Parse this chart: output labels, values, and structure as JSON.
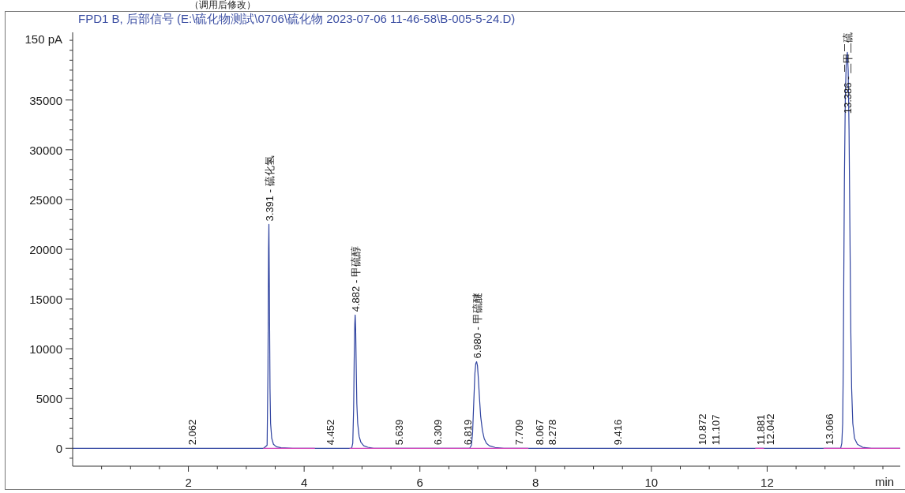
{
  "chart_data": {
    "type": "line",
    "title": "FPD1 B, 后部信号 (E:\\硫化物测試\\0706\\硫化物 2023-07-06 11-46-58\\B-005-5-24.D)",
    "subtitle": "（调用后修改）",
    "xlabel": "min",
    "ylabel": "150 pA",
    "x": [
      0,
      3.3,
      3.36,
      3.375,
      3.385,
      3.391,
      3.4,
      3.41,
      3.42,
      3.44,
      3.47,
      3.52,
      3.6,
      3.8,
      4.82,
      4.84,
      4.855,
      4.865,
      4.875,
      4.882,
      4.89,
      4.9,
      4.91,
      4.925,
      4.95,
      4.98,
      5.03,
      5.1,
      5.2,
      6.86,
      6.89,
      6.91,
      6.93,
      6.95,
      6.965,
      6.98,
      6.995,
      7.01,
      7.03,
      7.05,
      7.08,
      7.11,
      7.15,
      7.2,
      7.3,
      7.45,
      13.27,
      13.29,
      13.305,
      13.315,
      13.325,
      13.335,
      13.35,
      13.365,
      13.386,
      13.4,
      13.415,
      13.43,
      13.445,
      13.46,
      13.48,
      13.51,
      13.56,
      13.65,
      13.8,
      14.3
    ],
    "series": [
      {
        "color": "#2f43a0",
        "values": [
          0,
          0,
          300,
          8000,
          20000,
          22500,
          15000,
          6000,
          2500,
          1000,
          400,
          150,
          50,
          0,
          0,
          500,
          4000,
          9000,
          12500,
          13400,
          12000,
          8000,
          4500,
          2500,
          1200,
          600,
          250,
          100,
          0,
          0,
          300,
          1500,
          4500,
          7500,
          8500,
          8700,
          8300,
          7000,
          5000,
          3200,
          1800,
          1000,
          500,
          250,
          80,
          0,
          0,
          500,
          2500,
          8000,
          18000,
          27000,
          35000,
          38500,
          39800,
          38000,
          32000,
          22000,
          12000,
          6000,
          2500,
          1000,
          400,
          100,
          0,
          0
        ]
      },
      {
        "color": "#d040b8",
        "x": [
          3.3,
          4.18,
          4.5,
          4.79,
          7.87,
          9,
          11.8,
          11.94,
          12.5,
          12.98,
          14.3
        ],
        "values": [
          0,
          0,
          null,
          0,
          0,
          null,
          0,
          0,
          null,
          0,
          0
        ]
      }
    ],
    "xlim": [
      0,
      14.3
    ],
    "xticks": [
      {
        "value": 0.5,
        "label": null
      },
      {
        "value": 1,
        "label": null
      },
      {
        "value": 1.5,
        "label": null
      },
      2,
      {
        "value": 2.5,
        "label": null
      },
      {
        "value": 3,
        "label": null
      },
      {
        "value": 3.5,
        "label": null
      },
      4,
      {
        "value": 4.5,
        "label": null
      },
      {
        "value": 5,
        "label": null
      },
      {
        "value": 5.5,
        "label": null
      },
      6,
      {
        "value": 6.5,
        "label": null
      },
      {
        "value": 7,
        "label": null
      },
      {
        "value": 7.5,
        "label": null
      },
      8,
      {
        "value": 8.5,
        "label": null
      },
      {
        "value": 9,
        "label": null
      },
      {
        "value": 9.5,
        "label": null
      },
      10,
      {
        "value": 10.5,
        "label": null
      },
      {
        "value": 11,
        "label": null
      },
      {
        "value": 11.5,
        "label": null
      },
      12,
      {
        "value": 12.5,
        "label": null
      },
      {
        "value": 13,
        "label": null
      },
      {
        "value": 13.5,
        "label": null
      },
      {
        "value": 14,
        "label": null
      }
    ],
    "ylim": [
      -1800,
      41800
    ],
    "yticks": [
      {
        "value": -1000,
        "label": null
      },
      0,
      {
        "value": 1000,
        "label": null
      },
      {
        "value": 2000,
        "label": null
      },
      {
        "value": 3000,
        "label": null
      },
      {
        "value": 4000,
        "label": null
      },
      5000,
      {
        "value": 6000,
        "label": null
      },
      {
        "value": 7000,
        "label": null
      },
      {
        "value": 8000,
        "label": null
      },
      {
        "value": 9000,
        "label": null
      },
      10000,
      {
        "value": 11000,
        "label": null
      },
      {
        "value": 12000,
        "label": null
      },
      {
        "value": 13000,
        "label": null
      },
      {
        "value": 14000,
        "label": null
      },
      15000,
      {
        "value": 16000,
        "label": null
      },
      {
        "value": 17000,
        "label": null
      },
      {
        "value": 18000,
        "label": null
      },
      {
        "value": 19000,
        "label": null
      },
      20000,
      {
        "value": 21000,
        "label": null
      },
      {
        "value": 22000,
        "label": null
      },
      {
        "value": 23000,
        "label": null
      },
      {
        "value": 24000,
        "label": null
      },
      25000,
      {
        "value": 26000,
        "label": null
      },
      {
        "value": 27000,
        "label": null
      },
      {
        "value": 28000,
        "label": null
      },
      {
        "value": 29000,
        "label": null
      },
      30000,
      {
        "value": 31000,
        "label": null
      },
      {
        "value": 32000,
        "label": null
      },
      {
        "value": 33000,
        "label": null
      },
      {
        "value": 34000,
        "label": null
      },
      35000,
      {
        "value": 36000,
        "label": null
      },
      {
        "value": 37000,
        "label": null
      },
      {
        "value": 38000,
        "label": null
      },
      {
        "value": 39000,
        "label": null
      },
      {
        "value": 40000,
        "label": null
      },
      {
        "value": 41000,
        "label": null
      }
    ],
    "annotations": [
      {
        "text": "2.062",
        "x": 2.062,
        "y": 0
      },
      {
        "text": "3.391 - 硫化氢",
        "x": 3.391,
        "y": 22500
      },
      {
        "text": "4.452",
        "x": 4.452,
        "y": 0
      },
      {
        "text": "4.882 - 甲硫醇",
        "x": 4.882,
        "y": 13400
      },
      {
        "text": "5.639",
        "x": 5.639,
        "y": 0
      },
      {
        "text": "6.309",
        "x": 6.309,
        "y": 0
      },
      {
        "text": "6.819",
        "x": 6.819,
        "y": 0
      },
      {
        "text": "6.980 - 甲硫醚",
        "x": 6.98,
        "y": 8700
      },
      {
        "text": "7.709",
        "x": 7.709,
        "y": 0
      },
      {
        "text": "8.067",
        "x": 8.067,
        "y": 0
      },
      {
        "text": "8.278",
        "x": 8.278,
        "y": 0
      },
      {
        "text": "9.416",
        "x": 9.416,
        "y": 0
      },
      {
        "text": "10.872",
        "x": 10.872,
        "y": 0
      },
      {
        "text": "11.107",
        "x": 11.107,
        "y": 0
      },
      {
        "text": "11.881",
        "x": 11.881,
        "y": 0
      },
      {
        "text": "12.042",
        "x": 12.042,
        "y": 0
      },
      {
        "text": "13.066",
        "x": 13.066,
        "y": 0
      },
      {
        "text": "13.386 - 二甲二硫",
        "x": 13.386,
        "y": 39800
      }
    ]
  }
}
